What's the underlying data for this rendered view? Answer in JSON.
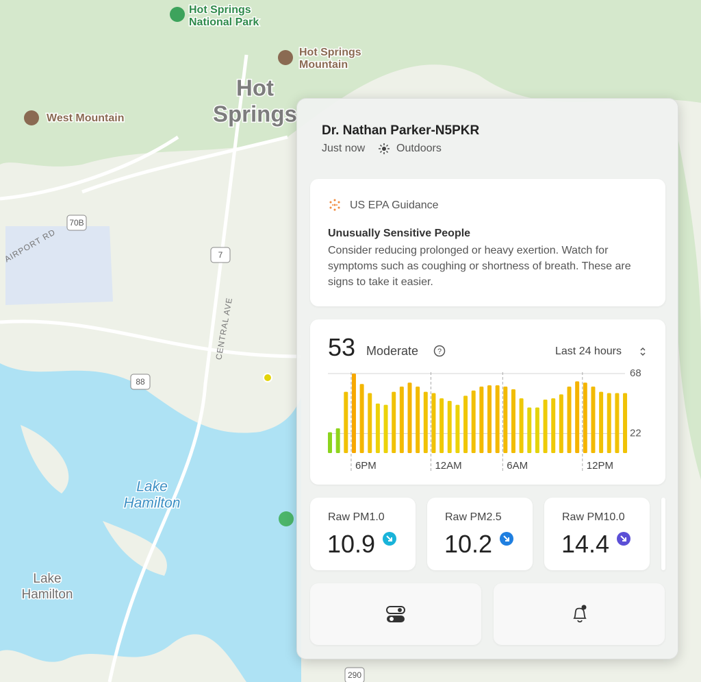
{
  "map": {
    "labels": [
      {
        "lines": [
          "Hot Springs",
          "National Park"
        ],
        "kind": "park"
      },
      {
        "lines": [
          "Hot Springs",
          "Mountain"
        ],
        "kind": "peak"
      },
      {
        "lines": [
          "West Mountain"
        ],
        "kind": "peak"
      },
      {
        "lines": [
          "Hot",
          "Springs"
        ],
        "kind": "city"
      },
      {
        "lines": [
          "Lake",
          "Hamilton"
        ],
        "kind": "lake"
      },
      {
        "lines": [
          "Lake",
          "Hamilton"
        ],
        "kind": "town"
      }
    ],
    "roads": [
      "70B",
      "7",
      "88",
      "290"
    ],
    "streets": [
      "AIRPORT RD",
      "CENTRAL AVE"
    ]
  },
  "panel": {
    "title": "Dr. Nathan Parker-N5PKR",
    "time": "Just now",
    "location": "Outdoors",
    "guidance": {
      "source": "US EPA Guidance",
      "heading": "Unusually Sensitive People",
      "body": "Consider reducing prolonged or heavy exertion. Watch for symptoms such as coughing or shortness of breath. These are signs to take it easier."
    },
    "aqi": {
      "value": "53",
      "label": "Moderate",
      "range": "Last 24 hours"
    },
    "readings": [
      {
        "name": "Raw PM1.0",
        "value": "10.9",
        "color": "#19b3d9"
      },
      {
        "name": "Raw PM2.5",
        "value": "10.2",
        "color": "#1f7fe0"
      },
      {
        "name": "Raw PM10.0",
        "value": "14.4",
        "color": "#5b4fd6"
      }
    ]
  },
  "chart_data": {
    "type": "bar",
    "categories": [
      null,
      null,
      null,
      "6PM",
      null,
      null,
      null,
      null,
      null,
      null,
      null,
      null,
      null,
      "12AM",
      null,
      null,
      null,
      null,
      null,
      null,
      null,
      null,
      "6AM",
      null,
      null,
      null,
      null,
      null,
      null,
      null,
      null,
      null,
      "12PM",
      null,
      null,
      null,
      null,
      null
    ],
    "values": [
      23,
      26,
      54,
      68,
      60,
      53,
      45,
      44,
      54,
      58,
      61,
      58,
      54,
      53,
      49,
      47,
      44,
      51,
      55,
      58,
      59,
      59,
      58,
      56,
      49,
      42,
      42,
      48,
      49,
      52,
      58,
      62,
      61,
      58,
      54,
      53,
      53,
      53
    ],
    "colors": {
      "low": "#8bd41e",
      "mid": "#ebd30a",
      "high": "#f7a800"
    },
    "ylim": [
      7,
      68
    ],
    "yticks": [
      22,
      68
    ]
  }
}
